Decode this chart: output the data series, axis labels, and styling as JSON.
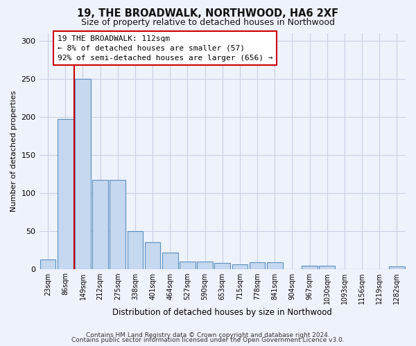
{
  "title1": "19, THE BROADWALK, NORTHWOOD, HA6 2XF",
  "title2": "Size of property relative to detached houses in Northwood",
  "xlabel": "Distribution of detached houses by size in Northwood",
  "ylabel": "Number of detached properties",
  "categories": [
    "23sqm",
    "86sqm",
    "149sqm",
    "212sqm",
    "275sqm",
    "338sqm",
    "401sqm",
    "464sqm",
    "527sqm",
    "590sqm",
    "653sqm",
    "715sqm",
    "778sqm",
    "841sqm",
    "904sqm",
    "967sqm",
    "1030sqm",
    "1093sqm",
    "1156sqm",
    "1219sqm",
    "1282sqm"
  ],
  "values": [
    12,
    197,
    250,
    117,
    117,
    50,
    35,
    21,
    10,
    10,
    8,
    6,
    9,
    9,
    0,
    4,
    4,
    0,
    0,
    0,
    3
  ],
  "bar_color": "#c5d8f0",
  "bar_edge_color": "#5a8fc0",
  "vline_x": 1.5,
  "vline_color": "#cc0000",
  "annotation_text": "19 THE BROADWALK: 112sqm\n← 8% of detached houses are smaller (57)\n92% of semi-detached houses are larger (656) →",
  "annotation_box_color": "#ffffff",
  "annotation_box_edgecolor": "#cc0000",
  "ylim": [
    0,
    310
  ],
  "yticks": [
    0,
    50,
    100,
    150,
    200,
    250,
    300
  ],
  "footer1": "Contains HM Land Registry data © Crown copyright and database right 2024.",
  "footer2": "Contains public sector information licensed under the Open Government Licence v3.0.",
  "bg_color": "#eef2fb"
}
